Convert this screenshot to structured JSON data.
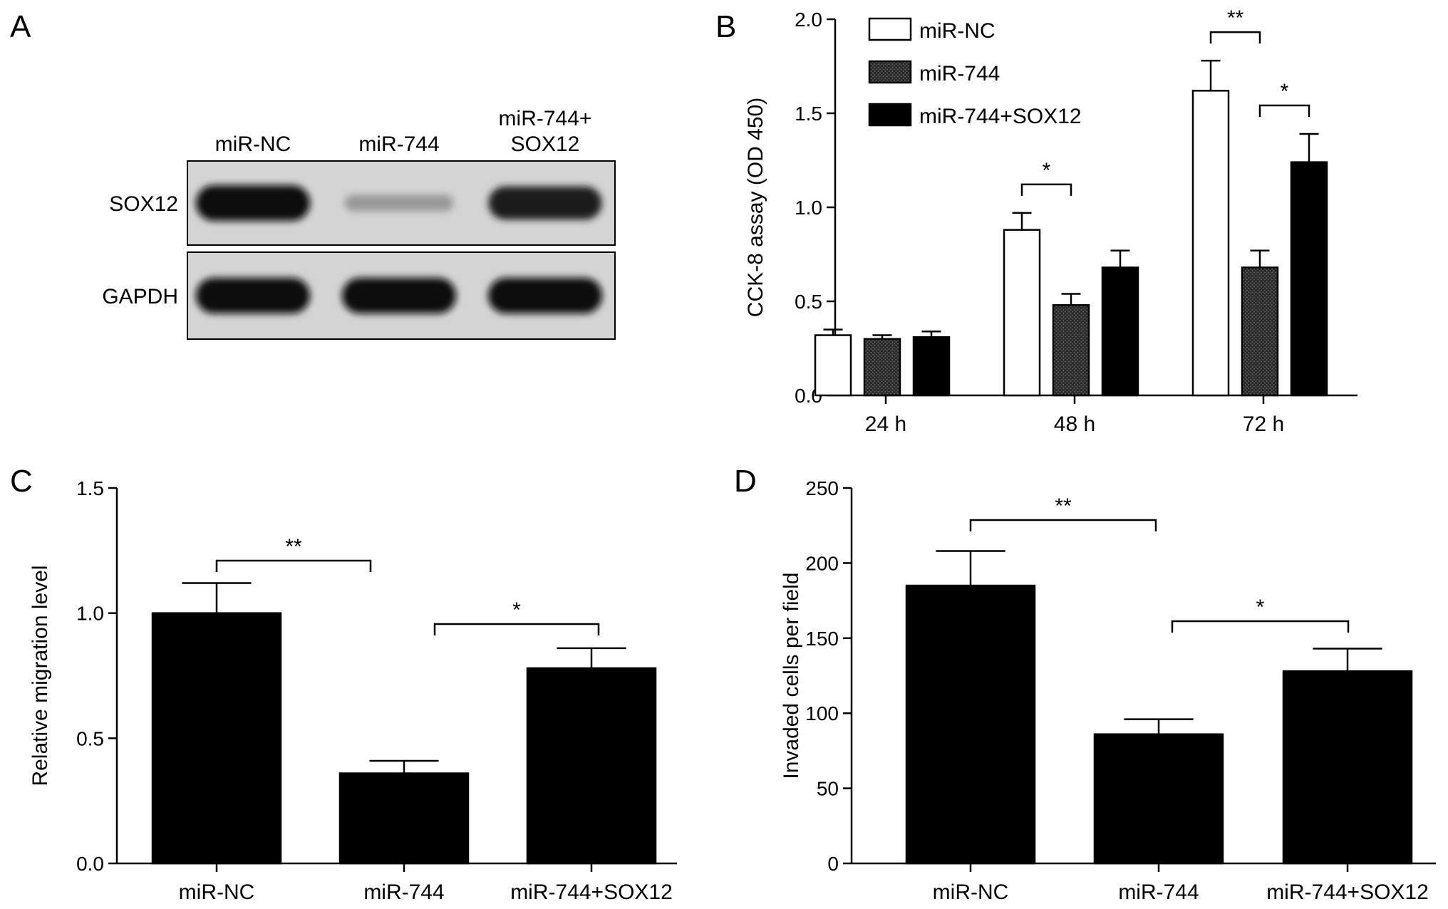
{
  "panels": {
    "a": "A",
    "b": "B",
    "c": "C",
    "d": "D"
  },
  "blot": {
    "lanes": [
      "miR-NC",
      "miR-744",
      "miR-744+\nSOX12"
    ],
    "rows": [
      {
        "label": "SOX12",
        "intensity": [
          1.0,
          0.25,
          0.9
        ]
      },
      {
        "label": "GAPDH",
        "intensity": [
          1.0,
          1.0,
          1.0
        ]
      }
    ]
  },
  "chart_data": [
    {
      "panel": "B",
      "type": "bar",
      "categories": [
        "24 h",
        "48 h",
        "72 h"
      ],
      "series": [
        {
          "name": "miR-NC",
          "values": [
            0.32,
            0.88,
            1.62
          ],
          "errors": [
            0.03,
            0.09,
            0.16
          ],
          "fill": "#ffffff"
        },
        {
          "name": "miR-744",
          "values": [
            0.3,
            0.48,
            0.68
          ],
          "errors": [
            0.02,
            0.06,
            0.09
          ],
          "fill": "#333333",
          "pattern": "hatched"
        },
        {
          "name": "miR-744+SOX12",
          "values": [
            0.31,
            0.68,
            1.24
          ],
          "errors": [
            0.03,
            0.09,
            0.15
          ],
          "fill": "#000000"
        }
      ],
      "title": "",
      "xlabel": "",
      "ylabel": "CCK-8 assay (OD 450)",
      "ylim": [
        0.0,
        2.0
      ],
      "yticks": [
        "0.0",
        "0.5",
        "1.0",
        "1.5",
        "2.0"
      ],
      "legend_placement": "top-left",
      "grid": false,
      "significance": [
        {
          "category": 1,
          "from_series": 0,
          "to_series": 1,
          "label": "*"
        },
        {
          "category": 2,
          "from_series": 0,
          "to_series": 1,
          "label": "**"
        },
        {
          "category": 2,
          "from_series": 1,
          "to_series": 2,
          "label": "*"
        }
      ]
    },
    {
      "panel": "C",
      "type": "bar",
      "categories": [
        "miR-NC",
        "miR-744",
        "miR-744+SOX12"
      ],
      "values": [
        1.0,
        0.36,
        0.78
      ],
      "errors": [
        0.12,
        0.05,
        0.08
      ],
      "title": "",
      "xlabel": "",
      "ylabel": "Relative migration level",
      "ylim": [
        0.0,
        1.5
      ],
      "yticks": [
        "0.0",
        "0.5",
        "1.0",
        "1.5"
      ],
      "grid": false,
      "significance": [
        {
          "from": 0,
          "to": 1,
          "label": "**"
        },
        {
          "from": 1,
          "to": 2,
          "label": "*"
        }
      ]
    },
    {
      "panel": "D",
      "type": "bar",
      "categories": [
        "miR-NC",
        "miR-744",
        "miR-744+SOX12"
      ],
      "values": [
        185,
        86,
        128
      ],
      "errors": [
        23,
        10,
        15
      ],
      "title": "",
      "xlabel": "",
      "ylabel": "Invaded cells per field",
      "ylim": [
        0,
        250
      ],
      "yticks": [
        "0",
        "50",
        "100",
        "150",
        "200",
        "250"
      ],
      "grid": false,
      "significance": [
        {
          "from": 0,
          "to": 1,
          "label": "**"
        },
        {
          "from": 1,
          "to": 2,
          "label": "*"
        }
      ]
    }
  ]
}
